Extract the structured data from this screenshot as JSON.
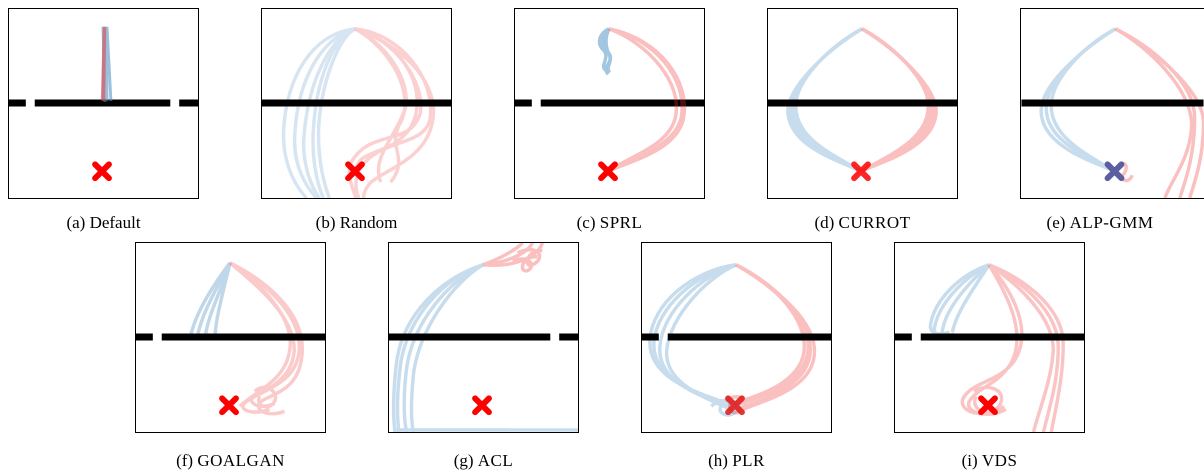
{
  "figure": {
    "panels": [
      {
        "id": "a",
        "label": "(a)",
        "method": "Default"
      },
      {
        "id": "b",
        "label": "(b)",
        "method": "Random"
      },
      {
        "id": "c",
        "label": "(c)",
        "method": "SPRL"
      },
      {
        "id": "d",
        "label": "(d)",
        "method": "CURROT"
      },
      {
        "id": "e",
        "label": "(e)",
        "method": "ALP-GMM"
      },
      {
        "id": "f",
        "label": "(f)",
        "method": "GOALGAN"
      },
      {
        "id": "g",
        "label": "(g)",
        "method": "ACL"
      },
      {
        "id": "h",
        "label": "(h)",
        "method": "PLR"
      },
      {
        "id": "i",
        "label": "(i)",
        "method": "VDS"
      }
    ],
    "colors": {
      "trajectory_blue": "#4a8ec2",
      "trajectory_red": "#f03030",
      "wall": "#000000",
      "goal_marker": "#ff0000"
    }
  }
}
